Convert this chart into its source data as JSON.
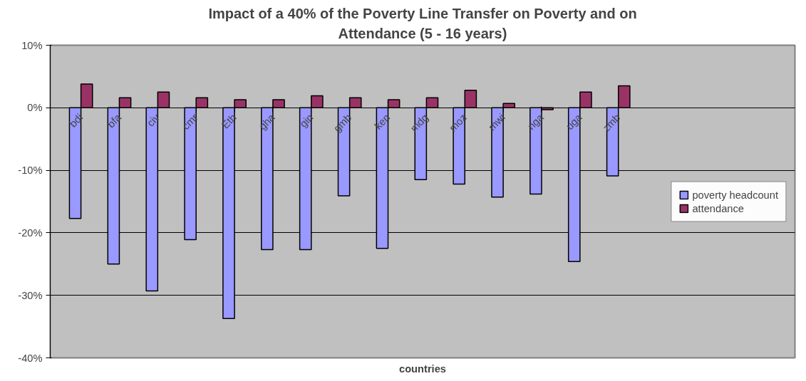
{
  "chart_data": {
    "type": "bar",
    "title": "Impact of a 40% of the Poverty Line Transfer on Poverty and on Attendance (5 - 16 years)",
    "xlabel": "countries",
    "categories": [
      "bdi",
      "bfa",
      "civ",
      "cmr",
      "Eth",
      "gha",
      "gin",
      "gmb",
      "ken",
      "mdg",
      "moz",
      "mwi",
      "nga",
      "uga",
      "zmb"
    ],
    "series": [
      {
        "name": "poverty headcount",
        "color": "#9999ff",
        "values": [
          -17.7,
          -25.0,
          -29.3,
          -21.1,
          -33.7,
          -22.7,
          -22.7,
          -14.1,
          -22.5,
          -11.5,
          -12.2,
          -14.3,
          -13.8,
          -24.6,
          -10.9
        ]
      },
      {
        "name": "attendance",
        "color": "#993366",
        "values": [
          3.8,
          1.6,
          2.5,
          1.6,
          1.3,
          1.3,
          1.9,
          1.6,
          1.3,
          1.6,
          2.8,
          0.7,
          -0.3,
          2.5,
          3.5
        ]
      }
    ],
    "ylim": [
      -40,
      10
    ],
    "yticks": [
      {
        "value": -40,
        "label": "-40%"
      },
      {
        "value": -30,
        "label": "-30%"
      },
      {
        "value": -20,
        "label": "-20%"
      },
      {
        "value": -10,
        "label": "-10%"
      },
      {
        "value": 0,
        "label": "0%"
      },
      {
        "value": 10,
        "label": "10%"
      }
    ],
    "grid": "y",
    "legend": "right"
  }
}
